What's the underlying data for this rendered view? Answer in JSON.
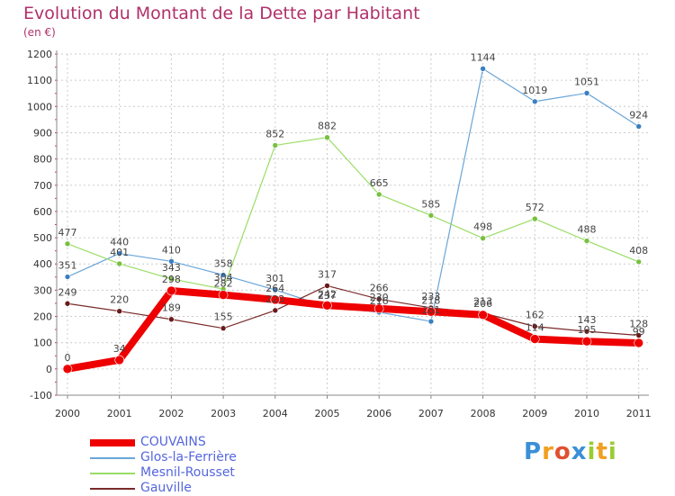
{
  "chart_data": {
    "type": "line",
    "title": "Evolution du Montant de la Dette par Habitant",
    "subtitle": "(en €)",
    "x": [
      "2000",
      "2001",
      "2002",
      "2003",
      "2004",
      "2005",
      "2006",
      "2007",
      "2008",
      "2009",
      "2010",
      "2011"
    ],
    "ylim": [
      -100,
      1200
    ],
    "yticks": [
      -100,
      0,
      100,
      200,
      300,
      400,
      500,
      600,
      700,
      800,
      900,
      1000,
      1100,
      1200
    ],
    "grid": true,
    "legend": "bottom-left",
    "series": [
      {
        "name": "COUVAINS",
        "color": "#ee0000",
        "width": 8,
        "marker": "#ee0000",
        "values": [
          0,
          34,
          298,
          282,
          264,
          242,
          230,
          218,
          206,
          114,
          105,
          99
        ]
      },
      {
        "name": "Glos-la-Ferrière",
        "color": "#6aa6d8",
        "width": 1.2,
        "marker": "#3a7fc0",
        "values": [
          351,
          440,
          410,
          358,
          301,
          237,
          216,
          181,
          1144,
          1019,
          1051,
          924
        ]
      },
      {
        "name": "Mesnil-Rousset",
        "color": "#99dd66",
        "width": 1.2,
        "marker": "#77c040",
        "values": [
          477,
          401,
          343,
          304,
          852,
          882,
          665,
          585,
          498,
          572,
          488,
          408
        ]
      },
      {
        "name": "Gauville",
        "color": "#7a2a2a",
        "width": 1.2,
        "marker": "#6a1a1a",
        "values": [
          249,
          220,
          189,
          155,
          223,
          317,
          266,
          233,
          213,
          162,
          143,
          128
        ]
      }
    ],
    "label_order": [
      "COUVAINS",
      "Gauville",
      "Mesnil-Rousset",
      "Glos-la-Ferrière"
    ]
  },
  "logo": {
    "letters": [
      "P",
      "r",
      "o",
      "x",
      "i",
      "t",
      "i"
    ],
    "colors": [
      "#3a8fd8",
      "#f0a020",
      "#e05030",
      "#3a8fd8",
      "#99cc33",
      "#f0a020",
      "#99cc33"
    ]
  }
}
